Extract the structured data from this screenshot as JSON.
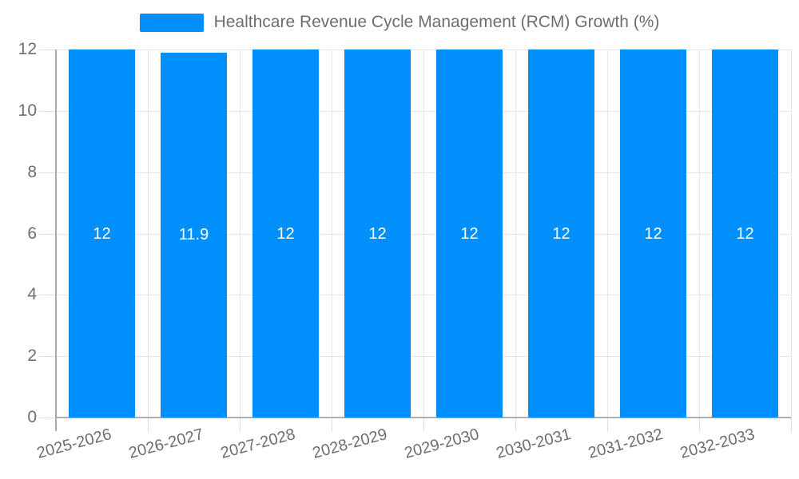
{
  "chart_data": {
    "type": "bar",
    "title": "Healthcare Revenue Cycle Management (RCM) Growth (%)",
    "categories": [
      "2025-2026",
      "2026-2027",
      "2027-2028",
      "2028-2029",
      "2029-2030",
      "2030-2031",
      "2031-2032",
      "2032-2033"
    ],
    "series": [
      {
        "name": "Healthcare Revenue Cycle Management (RCM) Growth (%)",
        "values": [
          12,
          11.9,
          12,
          12,
          12,
          12,
          12,
          12
        ]
      }
    ],
    "bar_labels": [
      "12",
      "11.9",
      "12",
      "12",
      "12",
      "12",
      "12",
      "12"
    ],
    "xlabel": "",
    "ylabel": "",
    "ylim": [
      0,
      12
    ],
    "y_ticks": [
      0,
      2,
      4,
      6,
      8,
      10,
      12
    ],
    "grid": "on",
    "legend_position": "top",
    "colors": {
      "bar": "#008FFB",
      "bar_label": "#ffffff",
      "axis_text": "#6e6e6e",
      "grid_line": "#e7e7e7",
      "axis_line": "#b0b0b0",
      "background": "#ffffff"
    }
  }
}
